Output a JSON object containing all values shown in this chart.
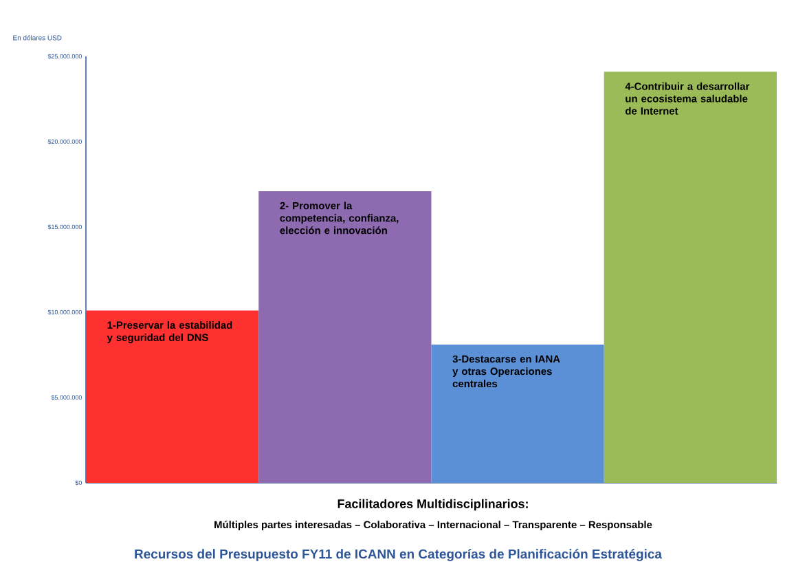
{
  "chart_data": {
    "type": "bar",
    "title": "Recursos del Presupuesto FY11 de ICANN en Categorías de Planificación Estratégica",
    "ylabel": "En dólares USD",
    "categories": [
      "1-Preservar la estabilidad y seguridad del DNS",
      "2- Promover la competencia, confianza, elección e innovación",
      "3-Destacarse en IANA y otras Operaciones centrales",
      "4-Contribuir a desarrollar un ecosistema saludable de Internet"
    ],
    "values": [
      10100000,
      17100000,
      8100000,
      24100000
    ],
    "colors": [
      "#ff3030",
      "#8e6bb0",
      "#5b8fd6",
      "#9bbb59"
    ],
    "ylim": [
      0,
      25000000
    ],
    "yticks": [
      {
        "value": 0,
        "label": "$0"
      },
      {
        "value": 5000000,
        "label": "$5.000.000"
      },
      {
        "value": 10000000,
        "label": "$10.000.000"
      },
      {
        "value": 15000000,
        "label": "$15.000.000"
      },
      {
        "value": 20000000,
        "label": "$20.000.000"
      },
      {
        "value": 25000000,
        "label": "$25.000.000"
      }
    ],
    "annotations": [
      "Facilitadores Multidisciplinarios:",
      "Múltiples partes interesadas – Colaborativa – Internacional – Transparente – Responsable"
    ]
  }
}
